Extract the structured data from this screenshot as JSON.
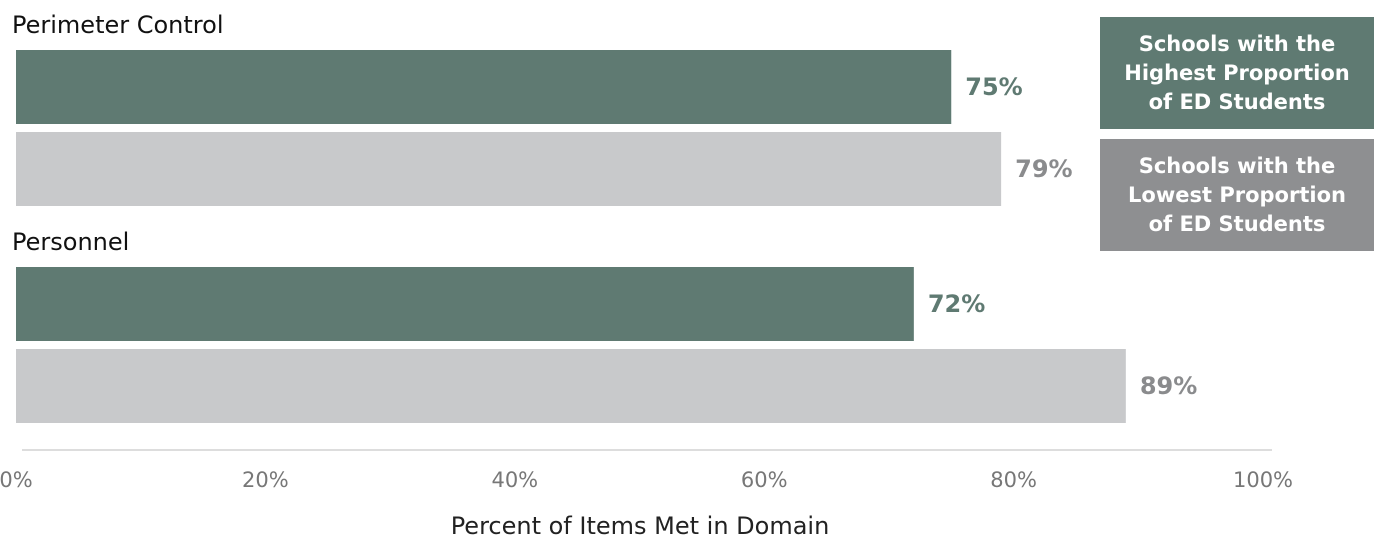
{
  "chart_data": {
    "type": "barh",
    "categories": [
      "Perimeter Control",
      "Personnel"
    ],
    "series": [
      {
        "name": "Schools with the Highest Proportion of ED Students",
        "color": "#5f7a72",
        "values": [
          75,
          72
        ],
        "value_labels": [
          "75%",
          "72%"
        ]
      },
      {
        "name": "Schools with the Lowest Proportion of ED Students",
        "color": "#c8c9cb",
        "label_color": "#8a8b8d",
        "values": [
          79,
          89
        ],
        "value_labels": [
          "79%",
          "89%"
        ]
      }
    ],
    "legend_colors": [
      "#5f7a72",
      "#8e8f91"
    ],
    "xlabel": "Percent of Items Met in Domain",
    "xlim": [
      0,
      100
    ],
    "xticks": [
      {
        "value": 0,
        "label": "0%"
      },
      {
        "value": 20,
        "label": "20%"
      },
      {
        "value": 40,
        "label": "40%"
      },
      {
        "value": 60,
        "label": "60%"
      },
      {
        "value": 80,
        "label": "80%"
      },
      {
        "value": 100,
        "label": "100%"
      }
    ]
  }
}
